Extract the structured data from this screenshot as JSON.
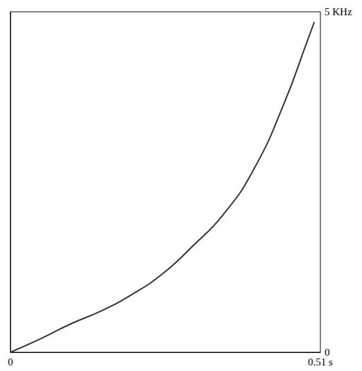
{
  "chart_data": {
    "type": "line",
    "x": [
      0,
      0.05,
      0.1,
      0.15,
      0.2,
      0.25,
      0.3,
      0.35,
      0.4,
      0.45,
      0.49,
      0.5
    ],
    "values": [
      0,
      0.2,
      0.42,
      0.61,
      0.85,
      1.15,
      1.56,
      2.02,
      2.68,
      3.65,
      4.61,
      4.85
    ],
    "color": "#333333",
    "xlim": [
      0,
      0.51
    ],
    "xticks": [
      0,
      {
        "value": 0.51,
        "label": "0.51 s"
      }
    ],
    "ylim": [
      0,
      5
    ],
    "yticks": [
      0,
      {
        "value": 5,
        "label": "5 KHz"
      }
    ],
    "grid": false
  }
}
